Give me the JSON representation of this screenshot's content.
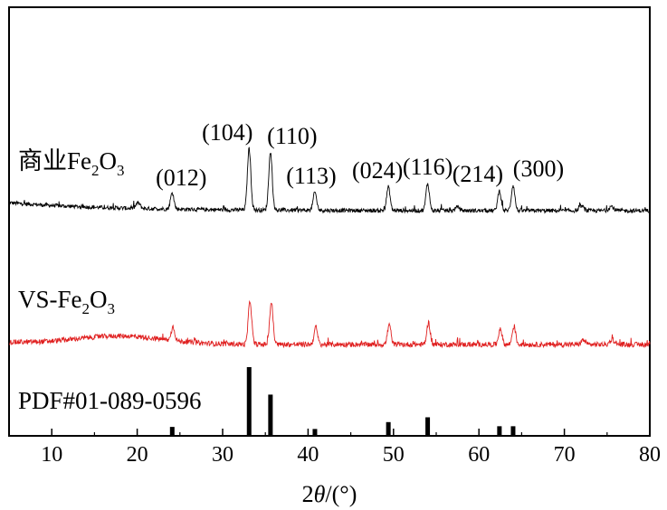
{
  "chart_data": {
    "type": "line",
    "xlabel_prefix": "2",
    "xlabel_theta": "θ",
    "xlabel_unit": "/(°)",
    "xlim": [
      5,
      80
    ],
    "xticks": [
      10,
      20,
      30,
      40,
      50,
      60,
      70,
      80
    ],
    "ylabel": "",
    "grid": false,
    "series": [
      {
        "name_main": "商业Fe",
        "name_sub1": "2",
        "name_mid": "O",
        "name_sub2": "3",
        "color": "#000000",
        "noise_amp": 0.55,
        "peaks": [
          [
            20.1,
            1.5,
            0.25
          ],
          [
            24.1,
            4.5,
            0.2
          ],
          [
            33.1,
            17,
            0.2
          ],
          [
            35.6,
            16,
            0.2
          ],
          [
            40.8,
            5,
            0.2
          ],
          [
            49.4,
            6.5,
            0.2
          ],
          [
            54.0,
            7.5,
            0.2
          ],
          [
            57.5,
            1,
            0.25
          ],
          [
            62.4,
            5.5,
            0.2
          ],
          [
            64.0,
            7,
            0.2
          ],
          [
            72.0,
            1.3,
            0.25
          ],
          [
            75.5,
            1.2,
            0.25
          ]
        ]
      },
      {
        "name_main": "VS-Fe",
        "name_sub1": "2",
        "name_mid": "O",
        "name_sub2": "3",
        "color": "#e02020",
        "noise_amp": 0.7,
        "amorphous_hump": [
          18,
          5,
          2.2
        ],
        "peaks": [
          [
            24.2,
            3.8,
            0.2
          ],
          [
            33.2,
            12,
            0.2
          ],
          [
            35.7,
            11.6,
            0.2
          ],
          [
            40.9,
            4.8,
            0.2
          ],
          [
            49.5,
            5.5,
            0.2
          ],
          [
            54.1,
            6,
            0.2
          ],
          [
            62.5,
            4.5,
            0.2
          ],
          [
            64.1,
            5,
            0.2
          ],
          [
            72.2,
            1.2,
            0.25
          ],
          [
            75.6,
            1.4,
            0.25
          ]
        ]
      }
    ],
    "reference": {
      "name": "PDF#01-089-0596",
      "x": [
        24.1,
        33.1,
        35.6,
        40.8,
        49.4,
        54.0,
        62.4,
        64.0
      ],
      "relative_intensity": [
        0.13,
        1.0,
        0.6,
        0.1,
        0.2,
        0.27,
        0.14,
        0.14
      ]
    },
    "annotations": [
      {
        "text": "(012)",
        "x": 24.1
      },
      {
        "text": "(104)",
        "x": 33.1
      },
      {
        "text": "(110)",
        "x": 35.6
      },
      {
        "text": "(113)",
        "x": 40.8
      },
      {
        "text": "(024)",
        "x": 49.4
      },
      {
        "text": "(116)",
        "x": 54.0
      },
      {
        "text": "(214)",
        "x": 62.4
      },
      {
        "text": "(300)",
        "x": 64.0
      }
    ]
  }
}
